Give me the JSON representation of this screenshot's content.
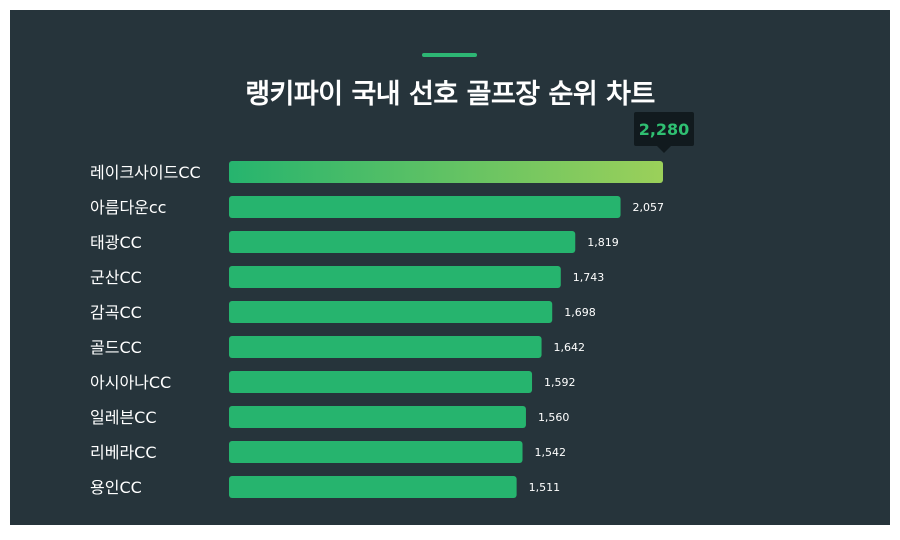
{
  "chart_data": {
    "type": "bar",
    "orientation": "horizontal",
    "title": "랭키파이 국내 선호 골프장 순위 차트",
    "categories": [
      "레이크사이드CC",
      "아름다운cc",
      "태광CC",
      "군산CC",
      "감곡CC",
      "골드CC",
      "아시아나CC",
      "일레븐CC",
      "리베라CC",
      "용인CC"
    ],
    "values": [
      2280,
      2057,
      1819,
      1743,
      1698,
      1642,
      1592,
      1560,
      1542,
      1511
    ],
    "value_labels": [
      "2,280",
      "2,057",
      "1,819",
      "1,743",
      "1,698",
      "1,642",
      "1,592",
      "1,560",
      "1,542",
      "1,511"
    ],
    "highlight_index": 0,
    "xlim": [
      0,
      2280
    ],
    "grid": false,
    "legend": "none"
  },
  "colors": {
    "background": "#26343b",
    "bar": "#26b46e",
    "highlight_start": "#26b46e",
    "highlight_end": "#9bd05a",
    "accent": "#2db674",
    "tooltip_bg": "#111a1e",
    "tooltip_text": "#2fbf71",
    "text": "#ffffff"
  }
}
